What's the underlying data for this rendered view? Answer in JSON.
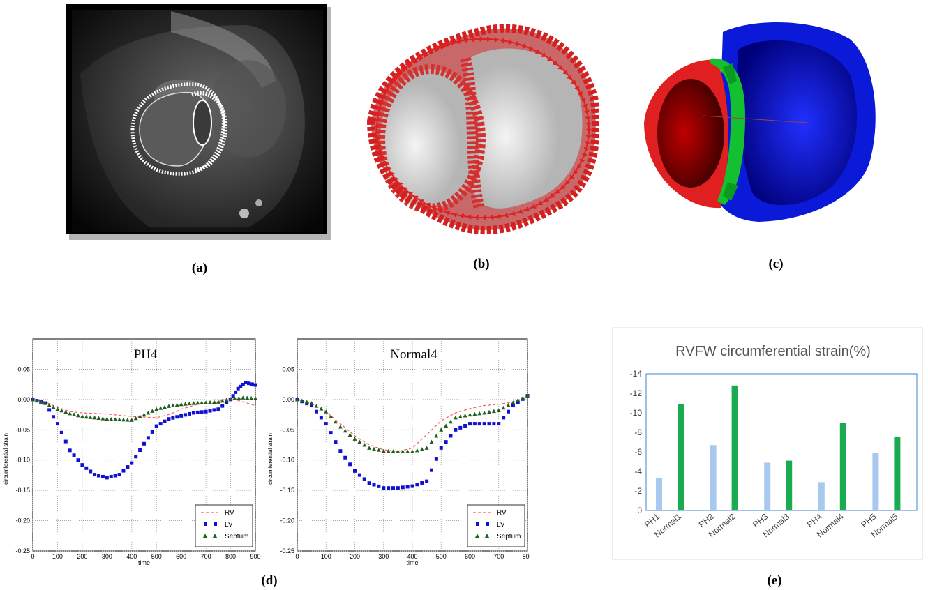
{
  "captions": {
    "a": "(a)",
    "b": "(b)",
    "c": "(c)",
    "d": "(d)",
    "e": "(e)"
  },
  "colors": {
    "rv": "#ff5a5a",
    "lv": "#1010d0",
    "septum": "#1f5f1f",
    "bar_ph": "#a9c8f0",
    "bar_normal": "#1aaa50",
    "frame": "#5b9bd5",
    "mesh_red": "#e02020",
    "mesh_blue": "#0a1ad8",
    "mesh_green": "#12c030"
  },
  "images": {
    "a": "mri-slice-with-mesh-contour",
    "b": "biventricular-mesh-fiber-vectors",
    "c": "biventricular-mesh-regions"
  },
  "chart_data": [
    {
      "type": "line",
      "title": "PH4",
      "xlabel": "time",
      "ylabel": "circumferential strain",
      "xlim": [
        0,
        900
      ],
      "ylim": [
        -0.25,
        0.1
      ],
      "xticks": [
        "0",
        "100",
        "200",
        "300",
        "400",
        "500",
        "600",
        "700",
        "800",
        "900"
      ],
      "yticks": [
        "0.05",
        "0.00",
        "-0.05",
        "-0.10",
        "-0.15",
        "-0.20",
        "-0.25"
      ],
      "grid": true,
      "legend": "bottom-right",
      "series": [
        {
          "name": "RV",
          "style": "dashed",
          "x": [
            0,
            50,
            100,
            150,
            200,
            250,
            300,
            350,
            400,
            450,
            500,
            550,
            600,
            650,
            700,
            750,
            800,
            850,
            900
          ],
          "values": [
            0.0,
            -0.004,
            -0.013,
            -0.02,
            -0.022,
            -0.023,
            -0.024,
            -0.026,
            -0.028,
            -0.029,
            -0.03,
            -0.025,
            -0.016,
            -0.01,
            -0.005,
            -0.003,
            0.002,
            -0.004,
            -0.01
          ]
        },
        {
          "name": "LV",
          "style": "square",
          "x": [
            0,
            50,
            100,
            150,
            200,
            250,
            300,
            350,
            400,
            450,
            500,
            550,
            600,
            650,
            700,
            750,
            800,
            830,
            860,
            900
          ],
          "values": [
            0.0,
            -0.006,
            -0.04,
            -0.084,
            -0.108,
            -0.124,
            -0.129,
            -0.124,
            -0.105,
            -0.073,
            -0.044,
            -0.032,
            -0.027,
            -0.022,
            -0.02,
            -0.016,
            0.0,
            0.018,
            0.028,
            0.024
          ]
        },
        {
          "name": "Septum",
          "style": "triangle",
          "x": [
            0,
            50,
            100,
            150,
            200,
            250,
            300,
            350,
            400,
            450,
            500,
            550,
            600,
            650,
            700,
            750,
            800,
            850,
            900
          ],
          "values": [
            0.0,
            -0.006,
            -0.016,
            -0.023,
            -0.028,
            -0.03,
            -0.032,
            -0.033,
            -0.034,
            -0.025,
            -0.016,
            -0.011,
            -0.008,
            -0.006,
            -0.005,
            -0.004,
            0.001,
            0.003,
            0.002
          ]
        }
      ]
    },
    {
      "type": "line",
      "title": "Normal4",
      "xlabel": "time",
      "ylabel": "circumferential strain",
      "xlim": [
        0,
        800
      ],
      "ylim": [
        -0.25,
        0.1
      ],
      "xticks": [
        "0",
        "100",
        "200",
        "300",
        "400",
        "500",
        "600",
        "700",
        "800"
      ],
      "yticks": [
        "0.05",
        "0.00",
        "-0.05",
        "-0.10",
        "-0.15",
        "-0.20",
        "-0.25"
      ],
      "grid": true,
      "legend": "bottom-right",
      "series": [
        {
          "name": "RV",
          "style": "dashed",
          "x": [
            0,
            50,
            100,
            150,
            200,
            250,
            300,
            350,
            400,
            450,
            500,
            550,
            600,
            650,
            700,
            750,
            800
          ],
          "values": [
            0.0,
            -0.007,
            -0.02,
            -0.04,
            -0.06,
            -0.075,
            -0.083,
            -0.086,
            -0.08,
            -0.058,
            -0.035,
            -0.022,
            -0.015,
            -0.01,
            -0.008,
            -0.004,
            0.006
          ]
        },
        {
          "name": "LV",
          "style": "square",
          "x": [
            0,
            50,
            100,
            150,
            200,
            250,
            300,
            350,
            400,
            450,
            500,
            550,
            600,
            650,
            700,
            750,
            800
          ],
          "values": [
            0.0,
            -0.01,
            -0.04,
            -0.085,
            -0.118,
            -0.138,
            -0.146,
            -0.146,
            -0.143,
            -0.135,
            -0.08,
            -0.05,
            -0.04,
            -0.04,
            -0.04,
            -0.01,
            0.006
          ]
        },
        {
          "name": "Septum",
          "style": "triangle",
          "x": [
            0,
            50,
            100,
            150,
            200,
            250,
            300,
            350,
            400,
            450,
            500,
            550,
            600,
            650,
            700,
            750,
            800
          ],
          "values": [
            0.0,
            -0.006,
            -0.02,
            -0.045,
            -0.065,
            -0.08,
            -0.085,
            -0.086,
            -0.086,
            -0.08,
            -0.05,
            -0.03,
            -0.025,
            -0.022,
            -0.018,
            -0.005,
            0.006
          ]
        }
      ]
    },
    {
      "type": "bar",
      "title": "RVFW circumferential strain(%)",
      "categories": [
        "PH1",
        "Normal1",
        "PH2",
        "Normal2",
        "PH3",
        "Normal3",
        "PH4",
        "Normal4",
        "PH5",
        "Normal5"
      ],
      "values": [
        -3.3,
        -10.9,
        -6.7,
        -12.8,
        -4.9,
        -5.1,
        -2.9,
        -9.0,
        -5.9,
        -7.5
      ],
      "yticks": [
        "-14",
        "-12",
        "-10",
        "-8",
        "-6",
        "-4",
        "-2",
        "0"
      ],
      "ylim": [
        0,
        -14
      ]
    }
  ]
}
